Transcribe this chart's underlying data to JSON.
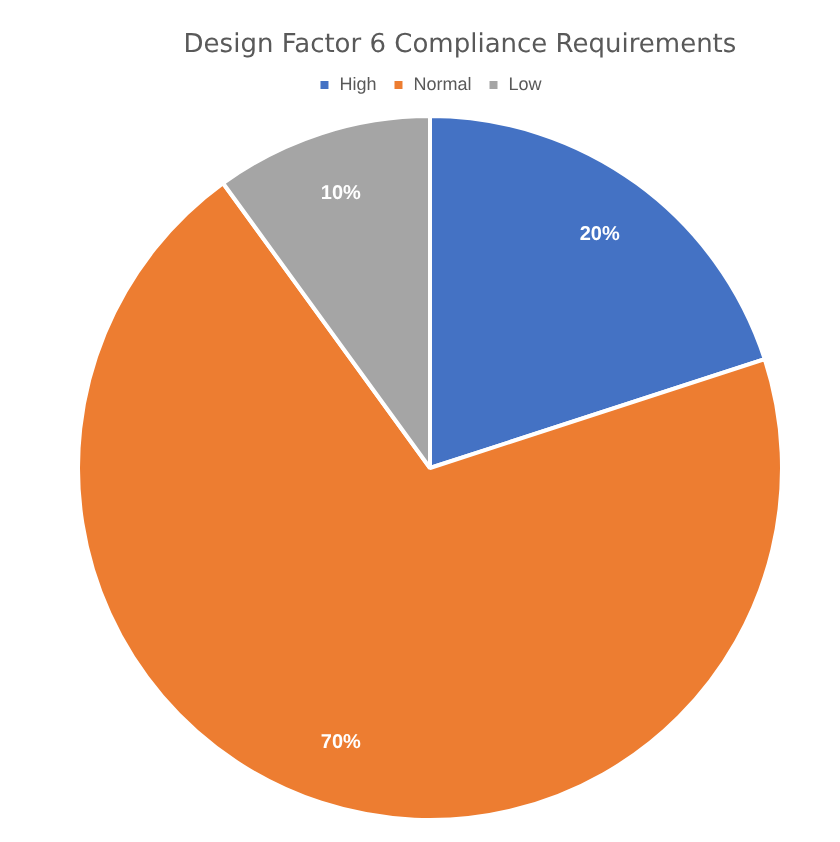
{
  "chart_data": {
    "type": "pie",
    "title": "Design Factor 6 Compliance Requirements",
    "categories": [
      "High",
      "Normal",
      "Low"
    ],
    "values": [
      20,
      70,
      10
    ],
    "colors": [
      "#4472c4",
      "#ed7d31",
      "#a5a5a5"
    ],
    "legend": "top",
    "value_labels": [
      "20%",
      "70%",
      "10%"
    ]
  }
}
